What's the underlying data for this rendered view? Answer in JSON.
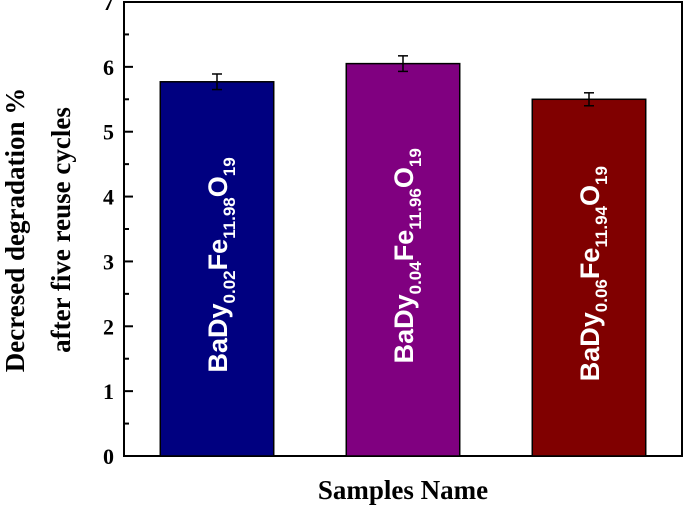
{
  "chart_data": {
    "type": "bar",
    "categories": [
      "BaDy0.02Fe11.98O19",
      "BaDy0.04Fe11.96O19",
      "BaDy0.06Fe11.94O19"
    ],
    "category_labels": [
      [
        {
          "t": "BaDy",
          "s": false
        },
        {
          "t": "0.02",
          "s": true
        },
        {
          "t": "Fe",
          "s": false
        },
        {
          "t": "11.98",
          "s": true
        },
        {
          "t": "O",
          "s": false
        },
        {
          "t": "19",
          "s": true
        }
      ],
      [
        {
          "t": "BaDy",
          "s": false
        },
        {
          "t": "0.04",
          "s": true
        },
        {
          "t": "Fe",
          "s": false
        },
        {
          "t": "11.96",
          "s": true
        },
        {
          "t": "O",
          "s": false
        },
        {
          "t": "19",
          "s": true
        }
      ],
      [
        {
          "t": "BaDy",
          "s": false
        },
        {
          "t": "0.06",
          "s": true
        },
        {
          "t": "Fe",
          "s": false
        },
        {
          "t": "11.94",
          "s": true
        },
        {
          "t": "O",
          "s": false
        },
        {
          "t": "19",
          "s": true
        }
      ]
    ],
    "values": [
      5.77,
      6.05,
      5.5
    ],
    "errors": [
      0.12,
      0.12,
      0.1
    ],
    "colors": [
      "#000080",
      "#800080",
      "#800000"
    ],
    "xlabel": "Samples Name",
    "ylabel_lines": [
      "Decresed degradation %",
      "after five reuse cycles"
    ],
    "ylim": [
      0,
      7
    ],
    "yticks": [
      0,
      1,
      2,
      3,
      4,
      5,
      6,
      7
    ],
    "grid": false,
    "legend": "none"
  }
}
